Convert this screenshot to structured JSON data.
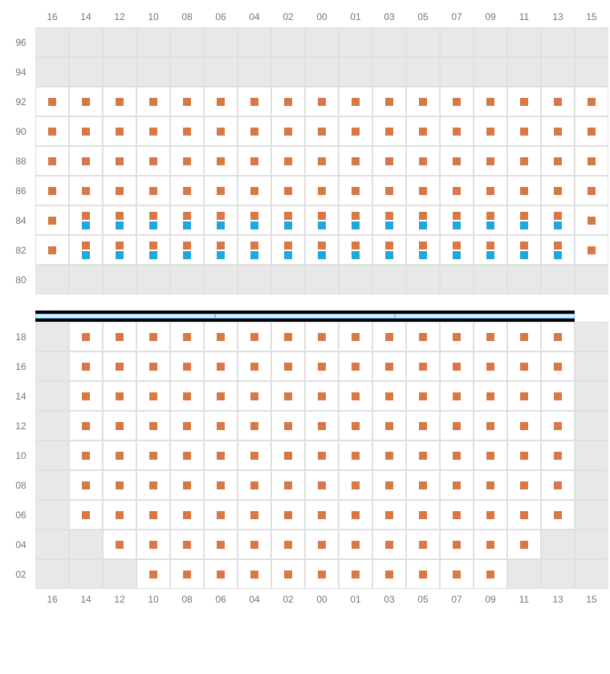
{
  "colors": {
    "orange": "#d97845",
    "blue": "#1fa8dc",
    "empty": "#e8e8e8",
    "active": "#ffffff",
    "grid": "#e0e0e0",
    "label": "#777777",
    "stage_fill": "#d4eeff",
    "stage_border": "#7fc8f0",
    "stage_bar": "#000000"
  },
  "columns": [
    "16",
    "14",
    "12",
    "10",
    "08",
    "06",
    "04",
    "02",
    "00",
    "01",
    "03",
    "05",
    "07",
    "09",
    "11",
    "13",
    "15"
  ],
  "top_section": {
    "rows": [
      "96",
      "94",
      "92",
      "90",
      "88",
      "86",
      "84",
      "82",
      "80"
    ],
    "cells": {
      "96": {
        "empty_cols": [
          "16",
          "14",
          "12",
          "10",
          "08",
          "06",
          "04",
          "02",
          "00",
          "01",
          "03",
          "05",
          "07",
          "09",
          "11",
          "13",
          "15"
        ]
      },
      "94": {
        "empty_cols": [
          "16",
          "14",
          "12",
          "10",
          "08",
          "06",
          "04",
          "02",
          "00",
          "01",
          "03",
          "05",
          "07",
          "09",
          "11",
          "13",
          "15"
        ]
      },
      "92": {
        "orange_cols": [
          "16",
          "14",
          "12",
          "10",
          "08",
          "06",
          "04",
          "02",
          "00",
          "01",
          "03",
          "05",
          "07",
          "09",
          "11",
          "13",
          "15"
        ]
      },
      "90": {
        "orange_cols": [
          "16",
          "14",
          "12",
          "10",
          "08",
          "06",
          "04",
          "02",
          "00",
          "01",
          "03",
          "05",
          "07",
          "09",
          "11",
          "13",
          "15"
        ]
      },
      "88": {
        "orange_cols": [
          "16",
          "14",
          "12",
          "10",
          "08",
          "06",
          "04",
          "02",
          "00",
          "01",
          "03",
          "05",
          "07",
          "09",
          "11",
          "13",
          "15"
        ]
      },
      "86": {
        "orange_cols": [
          "16",
          "14",
          "12",
          "10",
          "08",
          "06",
          "04",
          "02",
          "00",
          "01",
          "03",
          "05",
          "07",
          "09",
          "11",
          "13",
          "15"
        ]
      },
      "84": {
        "orange_cols": [
          "16",
          "14",
          "12",
          "10",
          "08",
          "06",
          "04",
          "02",
          "00",
          "01",
          "03",
          "05",
          "07",
          "09",
          "11",
          "13",
          "15"
        ],
        "blue_cols": [
          "14",
          "12",
          "10",
          "08",
          "06",
          "04",
          "02",
          "00",
          "01",
          "03",
          "05",
          "07",
          "09",
          "11",
          "13"
        ]
      },
      "82": {
        "orange_cols": [
          "16",
          "14",
          "12",
          "10",
          "08",
          "06",
          "04",
          "02",
          "00",
          "01",
          "03",
          "05",
          "07",
          "09",
          "11",
          "13",
          "15"
        ],
        "blue_cols": [
          "14",
          "12",
          "10",
          "08",
          "06",
          "04",
          "02",
          "00",
          "01",
          "03",
          "05",
          "07",
          "09",
          "11",
          "13"
        ]
      },
      "80": {
        "empty_cols": [
          "16",
          "14",
          "12",
          "10",
          "08",
          "06",
          "04",
          "02",
          "00",
          "01",
          "03",
          "05",
          "07",
          "09",
          "11",
          "13",
          "15"
        ]
      }
    }
  },
  "bottom_section": {
    "rows": [
      "18",
      "16",
      "14",
      "12",
      "10",
      "08",
      "06",
      "04",
      "02"
    ],
    "cells": {
      "18": {
        "empty_cols": [
          "16",
          "15"
        ],
        "orange_cols": [
          "14",
          "12",
          "10",
          "08",
          "06",
          "04",
          "02",
          "00",
          "01",
          "03",
          "05",
          "07",
          "09",
          "11",
          "13"
        ]
      },
      "16": {
        "empty_cols": [
          "16",
          "15"
        ],
        "orange_cols": [
          "14",
          "12",
          "10",
          "08",
          "06",
          "04",
          "02",
          "00",
          "01",
          "03",
          "05",
          "07",
          "09",
          "11",
          "13"
        ]
      },
      "14": {
        "empty_cols": [
          "16",
          "15"
        ],
        "orange_cols": [
          "14",
          "12",
          "10",
          "08",
          "06",
          "04",
          "02",
          "00",
          "01",
          "03",
          "05",
          "07",
          "09",
          "11",
          "13"
        ]
      },
      "12": {
        "empty_cols": [
          "16",
          "15"
        ],
        "orange_cols": [
          "14",
          "12",
          "10",
          "08",
          "06",
          "04",
          "02",
          "00",
          "01",
          "03",
          "05",
          "07",
          "09",
          "11",
          "13"
        ]
      },
      "10": {
        "empty_cols": [
          "16",
          "15"
        ],
        "orange_cols": [
          "14",
          "12",
          "10",
          "08",
          "06",
          "04",
          "02",
          "00",
          "01",
          "03",
          "05",
          "07",
          "09",
          "11",
          "13"
        ]
      },
      "08": {
        "empty_cols": [
          "16",
          "15"
        ],
        "orange_cols": [
          "14",
          "12",
          "10",
          "08",
          "06",
          "04",
          "02",
          "00",
          "01",
          "03",
          "05",
          "07",
          "09",
          "11",
          "13"
        ]
      },
      "06": {
        "empty_cols": [
          "16",
          "15"
        ],
        "orange_cols": [
          "14",
          "12",
          "10",
          "08",
          "06",
          "04",
          "02",
          "00",
          "01",
          "03",
          "05",
          "07",
          "09",
          "11",
          "13"
        ]
      },
      "04": {
        "empty_cols": [
          "16",
          "14",
          "13",
          "15"
        ],
        "orange_cols": [
          "12",
          "10",
          "08",
          "06",
          "04",
          "02",
          "00",
          "01",
          "03",
          "05",
          "07",
          "09",
          "11"
        ]
      },
      "02": {
        "empty_cols": [
          "16",
          "14",
          "12",
          "11",
          "13",
          "15"
        ],
        "orange_cols": [
          "10",
          "08",
          "06",
          "04",
          "02",
          "00",
          "01",
          "03",
          "05",
          "07",
          "09"
        ]
      }
    }
  },
  "stage_segments": 3
}
